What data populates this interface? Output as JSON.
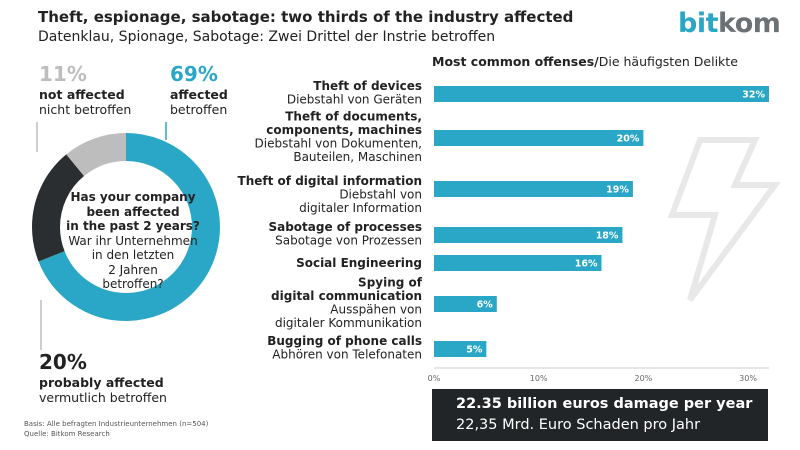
{
  "header": {
    "title": "Theft, espionage, sabotage: two thirds of the industry affected",
    "subtitle": "Datenklau, Spionage, Sabotage: Zwei Drittel der Instrie betroffen",
    "logo": {
      "part1": "bit",
      "part2": "kom"
    }
  },
  "donut": {
    "question_en": [
      "Has your company",
      "been affected",
      "in the past 2 years?"
    ],
    "question_de": [
      "War ihr Unternehmen",
      "in den letzten",
      "2 Jahren",
      "betroffen?"
    ],
    "segments": [
      {
        "percent": 69,
        "value_label": "69%",
        "label_en": "affected",
        "label_de": "betroffen",
        "color": "#2aa7c6"
      },
      {
        "percent": 20,
        "value_label": "20%",
        "label_en": "probably affected",
        "label_de": "vermutlich betroffen",
        "color": "#2b2e30"
      },
      {
        "percent": 11,
        "value_label": "11%",
        "label_en": "not affected",
        "label_de": "nicht betroffen",
        "color": "#bdbdbd"
      }
    ]
  },
  "chart_data": {
    "type": "bar",
    "orientation": "horizontal",
    "title": "Most common offenses",
    "title_de": "Die häufigsten Delikte",
    "xlim": [
      0,
      32
    ],
    "ticks": [
      0,
      10,
      20,
      30
    ],
    "tick_labels": [
      "0%",
      "10%",
      "20%",
      "30%"
    ],
    "bar_color": "#2aa7c6",
    "categories": [
      {
        "en": [
          "Theft of devices"
        ],
        "de": [
          "Diebstahl von Geräten"
        ],
        "value": 32,
        "label": "32%"
      },
      {
        "en": [
          "Theft of documents,",
          "components, machines"
        ],
        "de": [
          "Diebstahl von Dokumenten,",
          "Bauteilen, Maschinen"
        ],
        "value": 20,
        "label": "20%"
      },
      {
        "en": [
          "Theft of digital information"
        ],
        "de": [
          "Diebstahl von",
          "digitaler Information"
        ],
        "value": 19,
        "label": "19%"
      },
      {
        "en": [
          "Sabotage of processes"
        ],
        "de": [
          "Sabotage von Prozessen"
        ],
        "value": 18,
        "label": "18%"
      },
      {
        "en": [
          "Social Engineering"
        ],
        "de": [],
        "value": 16,
        "label": "16%"
      },
      {
        "en": [
          "Spying of",
          "digital communication"
        ],
        "de": [
          "Ausspähen von",
          "digitaler Kommunikation"
        ],
        "value": 6,
        "label": "6%"
      },
      {
        "en": [
          "Bugging of phone calls"
        ],
        "de": [
          "Abhören von Telefonaten"
        ],
        "value": 5,
        "label": "5%"
      }
    ]
  },
  "damage": {
    "en": "22.35 billion euros damage per year",
    "de": "22,35 Mrd. Euro Schaden pro Jahr"
  },
  "footer": {
    "basis": "Basis: Alle befragten Industrieunternehmen (n=504)",
    "source": "Quelle: Bitkom Research"
  }
}
